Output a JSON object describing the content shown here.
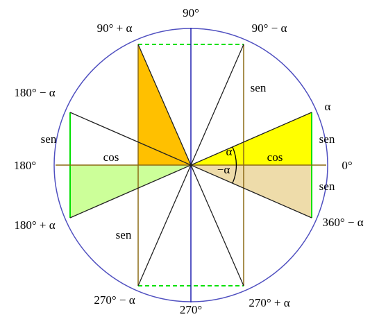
{
  "angles": {
    "top": "90°",
    "top_left": "90° + α",
    "top_right": "90° − α",
    "right_up": "α",
    "left_up": "180° − α",
    "left": "180°",
    "right": "0°",
    "left_down": "180° + α",
    "right_down": "360° − α",
    "bottom_left": "270° − α",
    "bottom": "270°",
    "bottom_right": "270° + α"
  },
  "segments": {
    "sen_left": "sen",
    "cos_left": "cos",
    "sen_bottom_left": "sen",
    "sen_top_right": "sen",
    "cos_right": "cos",
    "sen_right_up": "sen",
    "sen_right_down": "sen"
  },
  "center_angles": {
    "alpha": "α",
    "minus_alpha": "−α"
  }
}
